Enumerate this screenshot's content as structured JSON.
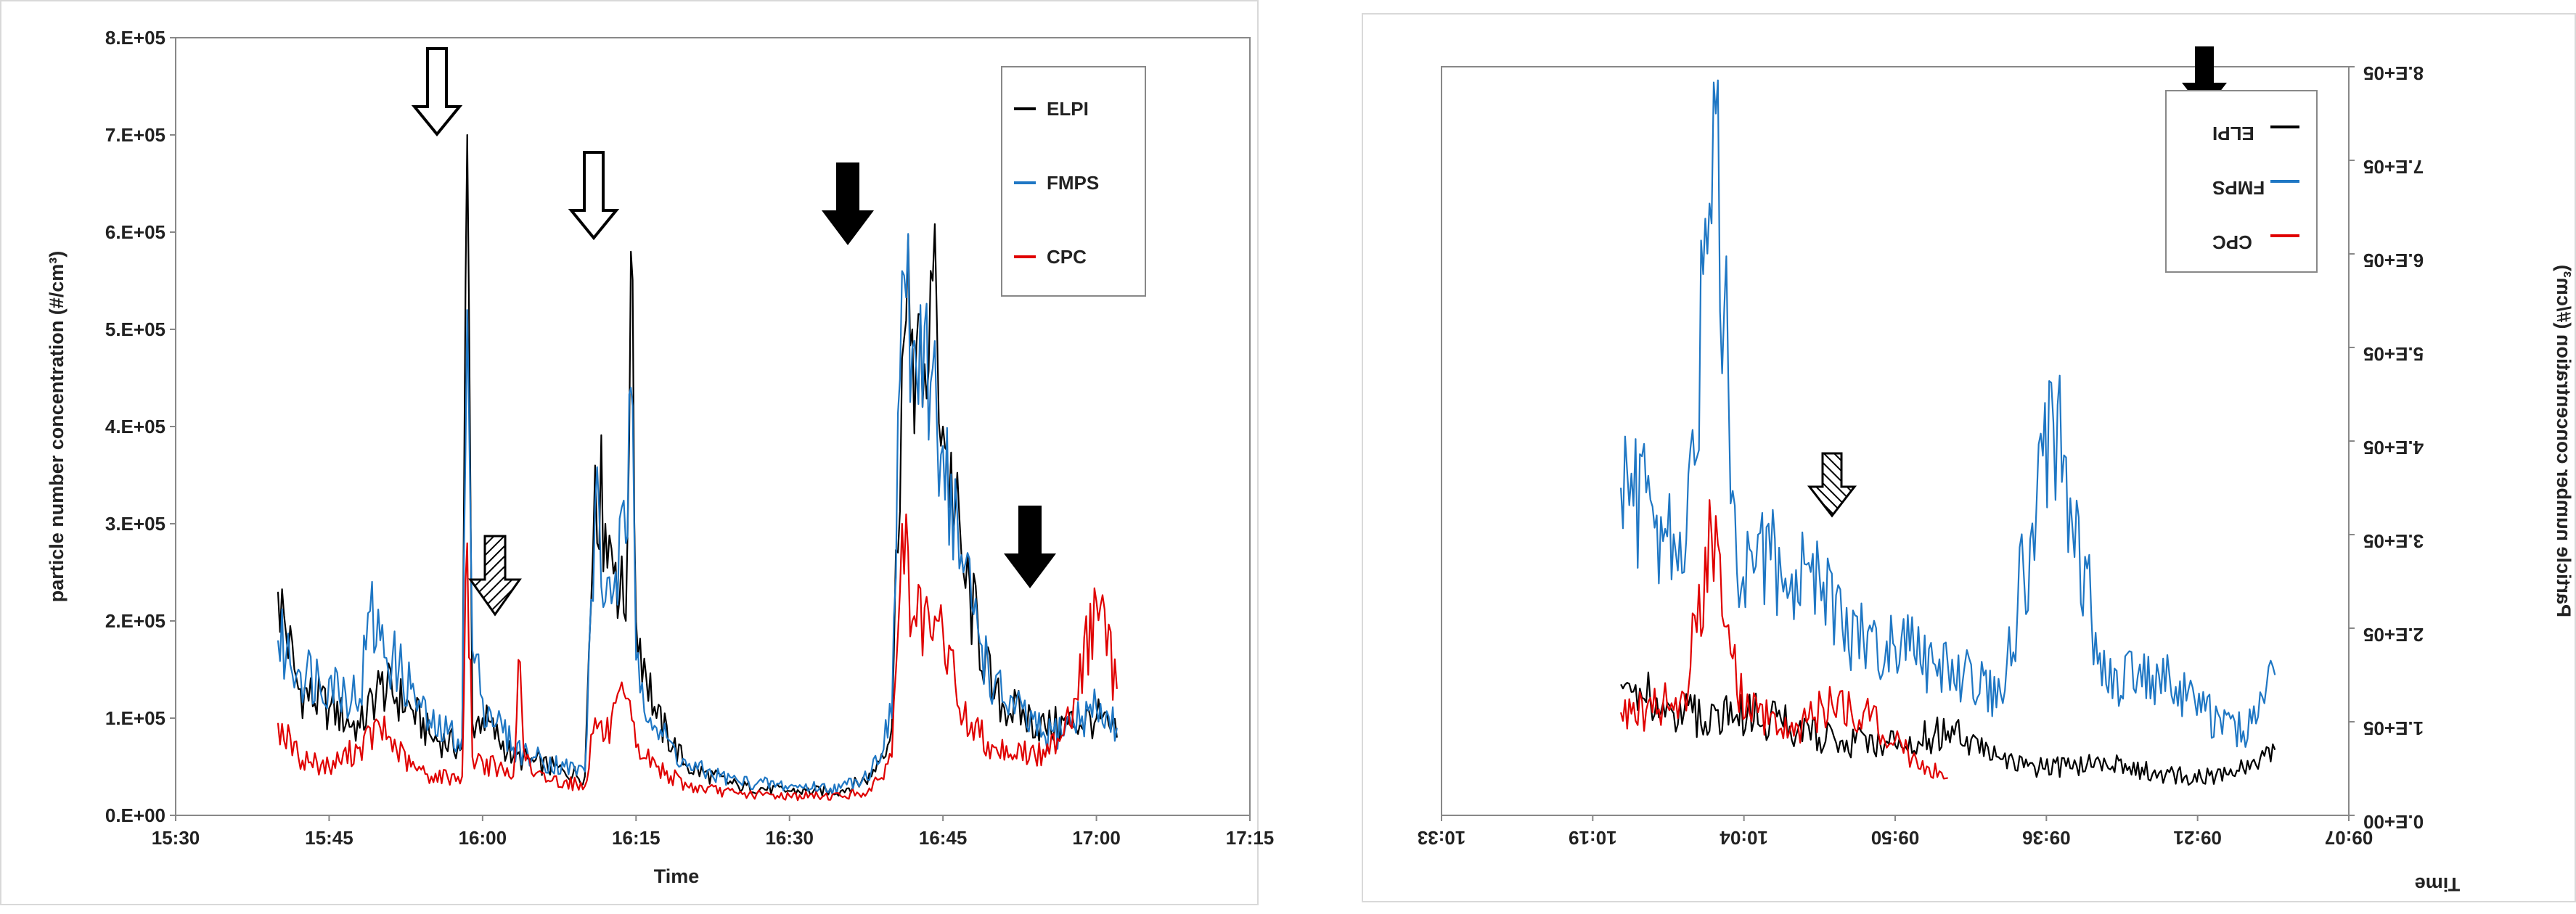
{
  "chart_data": [
    {
      "type": "line",
      "xlabel": "Time",
      "ylabel": "particle number concentration (#/cm³)",
      "x_tick_labels": [
        "15:30",
        "15:45",
        "16:00",
        "16:15",
        "16:30",
        "16:45",
        "17:00",
        "17:15"
      ],
      "y_tick_labels": [
        "0.E+00",
        "1.E+05",
        "2.E+05",
        "3.E+05",
        "4.E+05",
        "5.E+05",
        "6.E+05",
        "7.E+05",
        "8.E+05"
      ],
      "xlim": [
        "15:30",
        "17:15"
      ],
      "ylim": [
        0,
        800000
      ],
      "legend_position": "top-right",
      "series": [
        {
          "name": "ELPI",
          "color": "#000000",
          "x": [
            "15:40",
            "15:42",
            "15:45",
            "15:48",
            "15:50",
            "15:53",
            "15:55",
            "15:58",
            "15:58.5",
            "15:59",
            "16:00",
            "16:03",
            "16:05",
            "16:08",
            "16:10",
            "16:11",
            "16:12",
            "16:13",
            "16:14",
            "16:14.5",
            "16:15",
            "16:17",
            "16:20",
            "16:25",
            "16:30",
            "16:35",
            "16:38",
            "16:40",
            "16:41",
            "16:42",
            "16:43",
            "16:44",
            "16:45",
            "16:47",
            "16:50",
            "16:55",
            "17:00",
            "17:02"
          ],
          "values": [
            230000,
            130000,
            110000,
            90000,
            135000,
            110000,
            80000,
            70000,
            700000,
            95000,
            100000,
            60000,
            55000,
            45000,
            40000,
            360000,
            300000,
            260000,
            200000,
            580000,
            200000,
            100000,
            50000,
            30000,
            25000,
            25000,
            40000,
            90000,
            470000,
            500000,
            420000,
            550000,
            400000,
            250000,
            120000,
            90000,
            100000,
            80000
          ]
        },
        {
          "name": "FMPS",
          "color": "#1f77c4",
          "x": [
            "15:40",
            "15:42",
            "15:45",
            "15:48",
            "15:49",
            "15:50",
            "15:53",
            "15:55",
            "15:58",
            "15:58.5",
            "15:59",
            "16:00",
            "16:03",
            "16:05",
            "16:08",
            "16:10",
            "16:11",
            "16:12",
            "16:13",
            "16:14",
            "16:14.5",
            "16:15",
            "16:17",
            "16:20",
            "16:25",
            "16:30",
            "16:35",
            "16:38",
            "16:40",
            "16:41",
            "16:42",
            "16:43",
            "16:44",
            "16:45",
            "16:47",
            "16:50",
            "16:55",
            "17:00",
            "17:02"
          ],
          "values": [
            180000,
            150000,
            140000,
            120000,
            210000,
            180000,
            130000,
            90000,
            80000,
            520000,
            170000,
            120000,
            70000,
            60000,
            50000,
            45000,
            320000,
            220000,
            250000,
            280000,
            440000,
            160000,
            90000,
            50000,
            35000,
            30000,
            28000,
            45000,
            100000,
            560000,
            480000,
            420000,
            460000,
            380000,
            250000,
            130000,
            80000,
            110000,
            90000
          ]
        },
        {
          "name": "CPC",
          "color": "#e00000",
          "x": [
            "15:40",
            "15:42",
            "15:45",
            "15:48",
            "15:50",
            "15:53",
            "15:55",
            "15:58",
            "15:58.5",
            "15:59",
            "16:00",
            "16:03",
            "16:03.5",
            "16:04",
            "16:05",
            "16:08",
            "16:10",
            "16:11",
            "16:12",
            "16:14",
            "16:15",
            "16:17",
            "16:20",
            "16:25",
            "16:30",
            "16:35",
            "16:38",
            "16:40",
            "16:41",
            "16:42",
            "16:44",
            "16:45",
            "16:47",
            "16:50",
            "16:55",
            "16:58",
            "17:00",
            "17:02"
          ],
          "values": [
            95000,
            60000,
            50000,
            70000,
            90000,
            50000,
            40000,
            40000,
            280000,
            60000,
            55000,
            40000,
            160000,
            70000,
            40000,
            35000,
            30000,
            100000,
            80000,
            120000,
            70000,
            50000,
            30000,
            22000,
            20000,
            20000,
            25000,
            60000,
            300000,
            200000,
            180000,
            190000,
            100000,
            70000,
            60000,
            120000,
            220000,
            130000
          ]
        }
      ]
    },
    {
      "type": "line",
      "xlabel": "Time",
      "ylabel": "Particle number concentration (#/cm³)",
      "x_tick_labels": [
        "09:07",
        "09:21",
        "09:36",
        "09:50",
        "10:04",
        "10:19",
        "10:33"
      ],
      "y_tick_labels": [
        "0.E+00",
        "1.E+05",
        "2.E+05",
        "3.E+05",
        "4.E+05",
        "5.E+05",
        "6.E+05",
        "7.E+05",
        "8.E+05"
      ],
      "xlim": [
        "09:07",
        "10:33"
      ],
      "ylim": [
        0,
        800000
      ],
      "mirrored": true,
      "legend_position": "top-left",
      "series": [
        {
          "name": "ELPI",
          "color": "#000000",
          "x": [
            "09:14",
            "09:17",
            "09:21",
            "09:25",
            "09:30",
            "09:36",
            "09:40",
            "09:45",
            "09:50",
            "09:55",
            "10:00",
            "10:04",
            "10:08",
            "10:12",
            "10:16"
          ],
          "values": [
            70000,
            50000,
            40000,
            45000,
            55000,
            50000,
            60000,
            90000,
            75000,
            80000,
            95000,
            110000,
            100000,
            120000,
            140000
          ]
        },
        {
          "name": "FMPS",
          "color": "#1f77c4",
          "x": [
            "09:14",
            "09:17",
            "09:21",
            "09:25",
            "09:30",
            "09:35",
            "09:40",
            "09:45",
            "09:50",
            "09:55",
            "09:58",
            "10:00",
            "10:03",
            "10:05",
            "10:07",
            "10:10",
            "10:13",
            "10:16"
          ],
          "values": [
            150000,
            90000,
            110000,
            150000,
            140000,
            420000,
            130000,
            160000,
            180000,
            200000,
            260000,
            240000,
            300000,
            260000,
            750000,
            260000,
            330000,
            350000
          ]
        },
        {
          "name": "CPC",
          "color": "#e00000",
          "x": [
            "09:45",
            "09:48",
            "09:50",
            "09:53",
            "09:56",
            "10:00",
            "10:03",
            "10:05",
            "10:07",
            "10:10",
            "10:13",
            "10:16"
          ],
          "values": [
            40000,
            60000,
            80000,
            110000,
            120000,
            90000,
            110000,
            130000,
            320000,
            130000,
            110000,
            110000
          ]
        }
      ]
    }
  ],
  "left_legend": {
    "elpi": "ELPI",
    "fmps": "FMPS",
    "cpc": "CPC"
  },
  "right_legend": {
    "elpi": "ELPI",
    "fmps": "FMPS",
    "cpc": "CPC"
  }
}
